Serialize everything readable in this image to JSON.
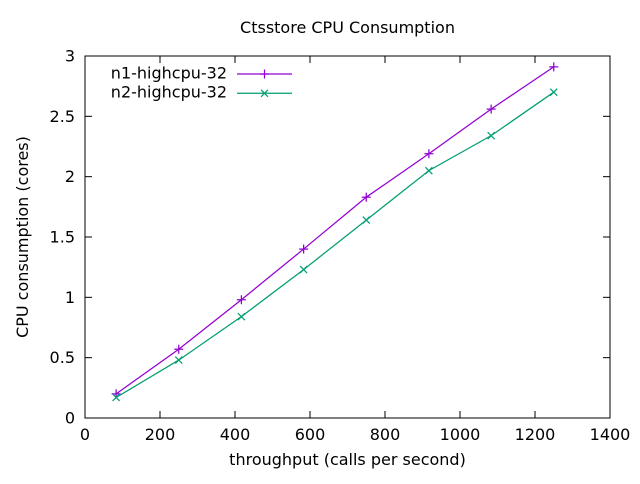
{
  "chart_data": {
    "type": "line",
    "title": "Ctsstore CPU Consumption",
    "xlabel": "throughput (calls per second)",
    "ylabel": "CPU consumption (cores)",
    "xlim": [
      0,
      1400
    ],
    "ylim": [
      0,
      3
    ],
    "xticks": [
      0,
      200,
      400,
      600,
      800,
      1000,
      1200,
      1400
    ],
    "yticks": [
      0,
      0.5,
      1,
      1.5,
      2,
      2.5,
      3
    ],
    "grid": false,
    "legend_position": "top-left-inside",
    "x": [
      83,
      250,
      417,
      583,
      750,
      917,
      1083,
      1250
    ],
    "series": [
      {
        "name": "n1-highcpu-32",
        "color": "#9400d3",
        "marker": "plus",
        "values": [
          0.2,
          0.57,
          0.98,
          1.4,
          1.83,
          2.19,
          2.56,
          2.91
        ]
      },
      {
        "name": "n2-highcpu-32",
        "color": "#009e73",
        "marker": "cross",
        "values": [
          0.17,
          0.48,
          0.84,
          1.23,
          1.64,
          2.05,
          2.34,
          2.7
        ]
      }
    ]
  }
}
